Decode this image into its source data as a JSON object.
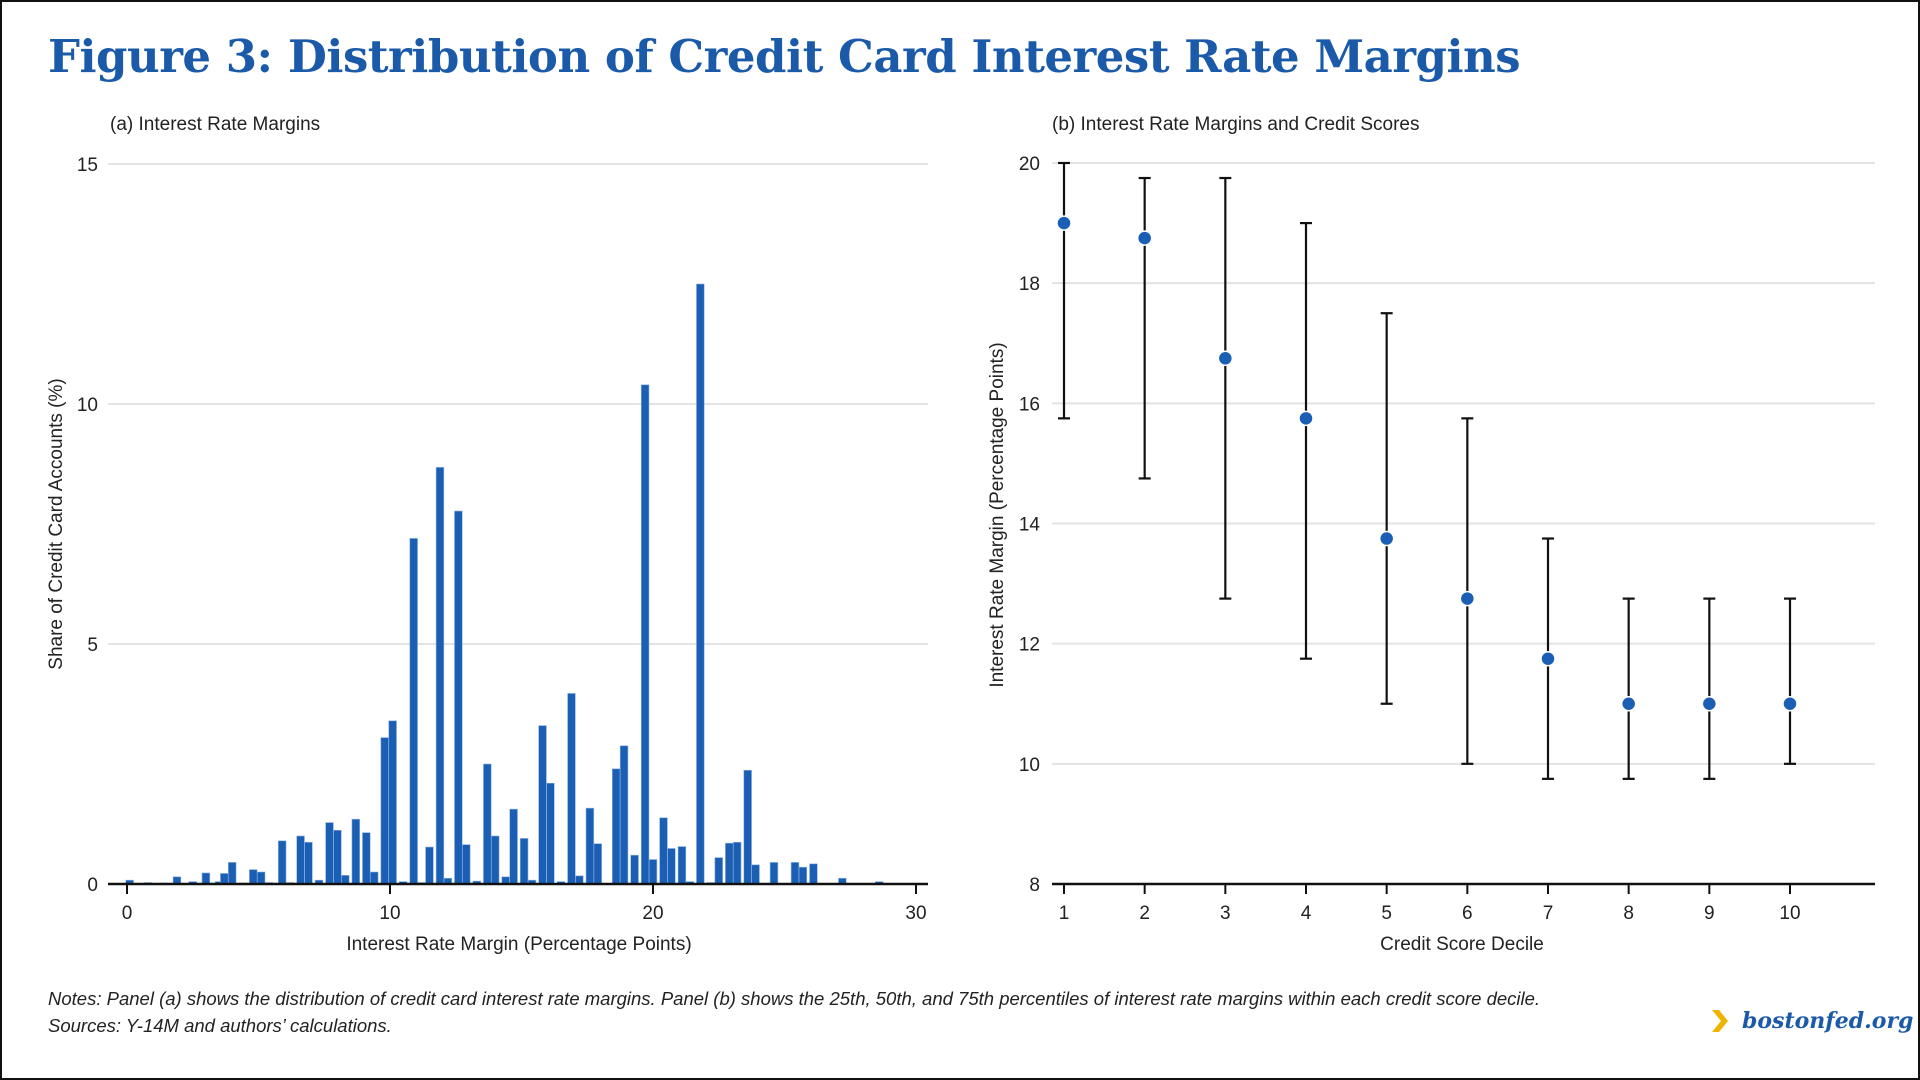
{
  "header": {
    "title": "Figure 3: Distribution of Credit Card Interest Rate Margins"
  },
  "colors": {
    "accent": "#1a5aa8",
    "bar": "#1a5fb4",
    "point": "#1a5fb4",
    "errorbar": "#111111",
    "gridline": "#e3e3e3",
    "logo_arrow": "#f0b400"
  },
  "chart_data": [
    {
      "type": "bar",
      "panel_title": "(a) Interest Rate Margins",
      "xlabel": "Interest Rate Margin (Percentage Points)",
      "ylabel": "Share of Credit Card Accounts (%)",
      "xlim": [
        0,
        30
      ],
      "ylim": [
        0,
        15
      ],
      "x_ticks": [
        0,
        10,
        20,
        30
      ],
      "y_ticks": [
        0,
        5,
        10,
        15
      ],
      "grid": true,
      "bin_width": 0.333,
      "x": [
        0.1,
        0.8,
        1.4,
        1.9,
        2.5,
        3.0,
        3.5,
        3.7,
        4.0,
        4.4,
        4.8,
        5.1,
        5.4,
        5.9,
        6.2,
        6.6,
        6.9,
        7.3,
        7.7,
        8.0,
        8.3,
        8.7,
        9.1,
        9.4,
        9.8,
        10.1,
        10.5,
        10.9,
        11.2,
        11.5,
        11.9,
        12.2,
        12.6,
        12.9,
        13.3,
        13.7,
        14.0,
        14.4,
        14.7,
        15.1,
        15.4,
        15.8,
        16.1,
        16.5,
        16.9,
        17.2,
        17.6,
        17.9,
        18.6,
        18.9,
        19.3,
        19.7,
        20.0,
        20.4,
        20.7,
        21.1,
        21.4,
        21.8,
        22.2,
        22.5,
        22.9,
        23.2,
        23.6,
        23.9,
        24.6,
        25.4,
        25.7,
        26.1,
        27.2,
        28.6
      ],
      "values": [
        0.08,
        0.03,
        0.02,
        0.15,
        0.05,
        0.23,
        0.05,
        0.22,
        0.45,
        0.02,
        0.3,
        0.25,
        0.03,
        0.9,
        0.03,
        1.0,
        0.87,
        0.08,
        1.28,
        1.12,
        0.18,
        1.35,
        1.07,
        0.25,
        3.05,
        3.4,
        0.05,
        7.2,
        0.03,
        0.77,
        8.68,
        0.12,
        7.77,
        0.82,
        0.06,
        2.5,
        1.0,
        0.15,
        1.56,
        0.95,
        0.08,
        3.3,
        2.1,
        0.05,
        3.97,
        0.17,
        1.58,
        0.84,
        2.4,
        2.88,
        0.6,
        10.4,
        0.51,
        1.38,
        0.74,
        0.78,
        0.05,
        12.5,
        0.03,
        0.55,
        0.85,
        0.87,
        2.37,
        0.4,
        0.45,
        0.45,
        0.35,
        0.42,
        0.12,
        0.05
      ]
    },
    {
      "type": "scatter",
      "subtype": "errorbar",
      "panel_title": "(b) Interest Rate Margins and Credit Scores",
      "xlabel": "Credit Score Decile",
      "ylabel": "Interest Rate Margin (Percentage Points)",
      "xlim": [
        1,
        10
      ],
      "ylim": [
        8,
        20
      ],
      "x_ticks": [
        1,
        2,
        3,
        4,
        5,
        6,
        7,
        8,
        9,
        10
      ],
      "y_ticks": [
        8,
        10,
        12,
        14,
        16,
        18,
        20
      ],
      "grid": true,
      "categories": [
        1,
        2,
        3,
        4,
        5,
        6,
        7,
        8,
        9,
        10
      ],
      "series": [
        {
          "name": "75th percentile",
          "values": [
            20,
            19.75,
            19.75,
            19,
            17.5,
            15.75,
            13.75,
            12.75,
            12.75,
            12.75
          ]
        },
        {
          "name": "50th percentile (median)",
          "values": [
            19,
            18.75,
            16.75,
            15.75,
            13.75,
            12.75,
            11.75,
            11,
            11,
            11
          ]
        },
        {
          "name": "25th percentile",
          "values": [
            15.75,
            14.75,
            12.75,
            11.75,
            11,
            10,
            9.75,
            9.75,
            9.75,
            10
          ]
        }
      ]
    }
  ],
  "footer": {
    "notes": "Notes: Panel (a) shows the distribution of credit card interest rate margins. Panel (b) shows the 25th, 50th, and 75th percentiles of interest rate margins within each credit score decile.",
    "sources": "Sources: Y-14M and authors’ calculations.",
    "logo_icon": "chevron-right-icon",
    "logo_text": "bostonfed.org"
  }
}
